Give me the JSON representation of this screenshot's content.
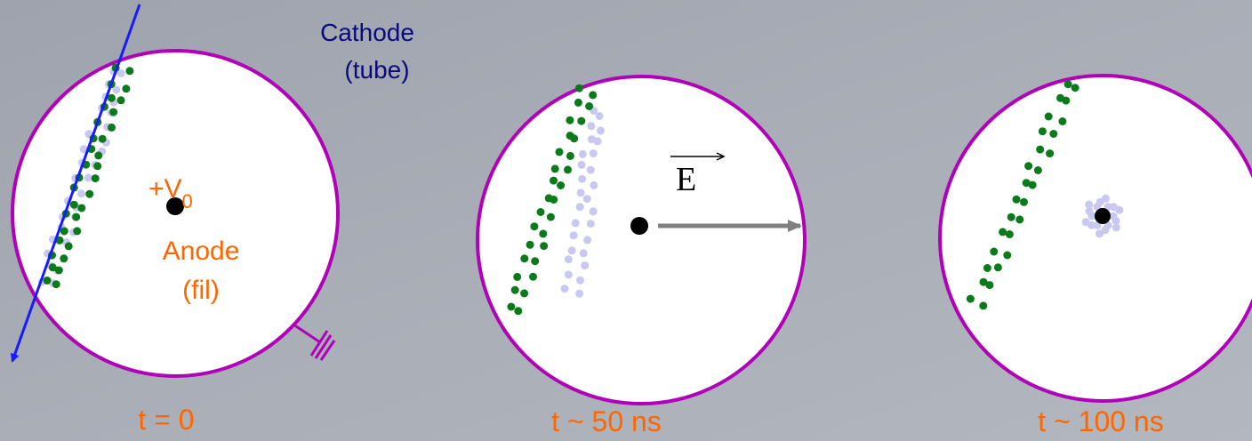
{
  "cathode": {
    "label": "Cathode",
    "sublabel": "(tube)"
  },
  "anode": {
    "voltage": "+V",
    "voltage_subscript": "0",
    "label": "Anode",
    "sublabel": "(fil)"
  },
  "field_label": "E",
  "panels": [
    {
      "caption": "t = 0"
    },
    {
      "caption": "t ~ 50 ns"
    },
    {
      "caption": "t ~ 100 ns"
    }
  ]
}
